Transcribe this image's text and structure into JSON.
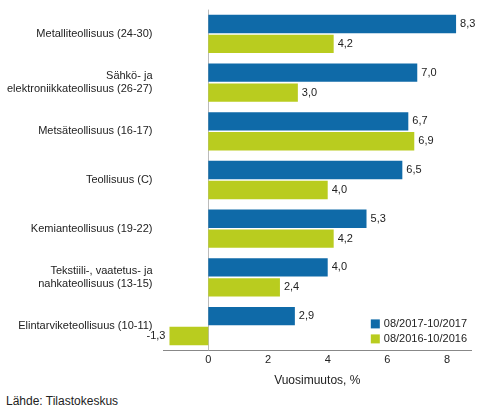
{
  "chart_data": {
    "type": "bar",
    "orientation": "horizontal",
    "categories": [
      "Metalliteollisuus (24-30)",
      "Sähkö- ja elektroniikkateollisuus (26-27)",
      "Metsäteollisuus (16-17)",
      "Teollisuus (C)",
      "Kemianteollisuus (19-22)",
      "Tekstiili-, vaatetus- ja nahkateollisuus (13-15)",
      "Elintarviketeollisuus (10-11)"
    ],
    "series": [
      {
        "name": "08/2017-10/2017",
        "color": "#0f6aa8",
        "values": [
          8.3,
          7.0,
          6.7,
          6.5,
          5.3,
          4.0,
          2.9
        ],
        "value_labels": [
          "8,3",
          "7,0",
          "6,7",
          "6,5",
          "5,3",
          "4,0",
          "2,9"
        ]
      },
      {
        "name": "08/2016-10/2016",
        "color": "#b9cc1f",
        "values": [
          4.2,
          3.0,
          6.9,
          4.0,
          4.2,
          2.4,
          -1.3
        ],
        "value_labels": [
          "4,2",
          "3,0",
          "6,9",
          "4,0",
          "4,2",
          "2,4",
          "-1,3"
        ]
      }
    ],
    "x_label": "Vuosimuutos, %",
    "xlim": [
      -1.5,
      8.8
    ],
    "xticks": [
      0,
      2,
      4,
      6,
      8
    ],
    "grid": false,
    "legend": "lower right",
    "data_labels": true,
    "annotations": [
      "Lähde: Tilastokeskus"
    ]
  }
}
